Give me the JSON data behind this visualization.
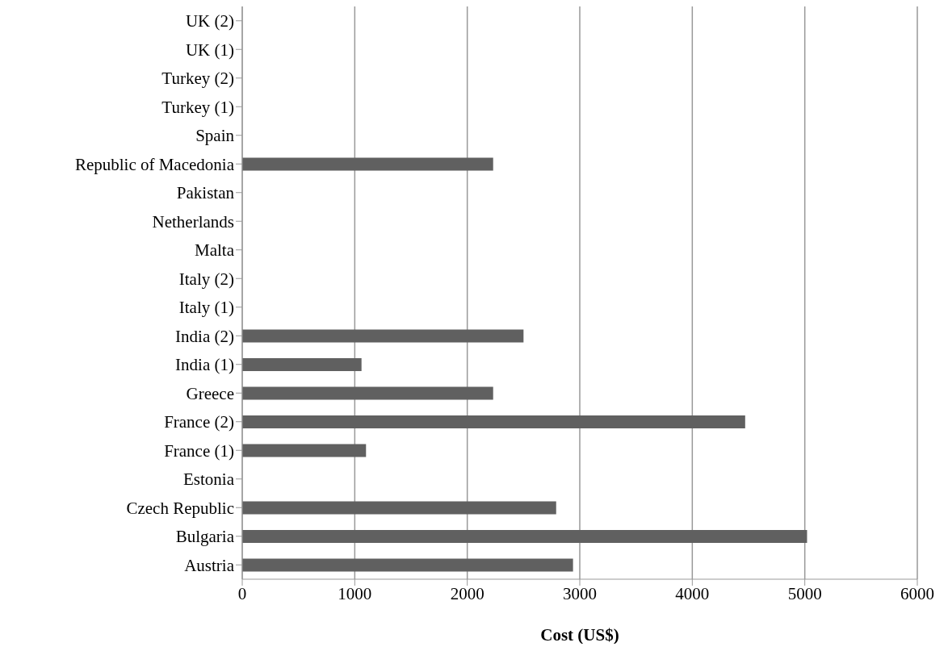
{
  "chart_data": {
    "type": "bar",
    "orientation": "horizontal",
    "xlabel": "Cost (US$)",
    "categories": [
      "UK (2)",
      "UK (1)",
      "Turkey (2)",
      "Turkey (1)",
      "Spain",
      "Republic of Macedonia",
      "Pakistan",
      "Netherlands",
      "Malta",
      "Italy (2)",
      "Italy (1)",
      "India (2)",
      "India (1)",
      "Greece",
      "France (2)",
      "France (1)",
      "Estonia",
      "Czech Republic",
      "Bulgaria",
      "Austria"
    ],
    "values": [
      null,
      null,
      null,
      null,
      null,
      2230,
      null,
      null,
      null,
      null,
      null,
      2500,
      1060,
      2230,
      4470,
      1100,
      null,
      2790,
      5020,
      2940
    ],
    "color": "#606060",
    "xlim": [
      0,
      6000
    ],
    "xticks": [
      0,
      1000,
      2000,
      3000,
      4000,
      5000,
      6000
    ],
    "grid": "x",
    "legend": false
  }
}
